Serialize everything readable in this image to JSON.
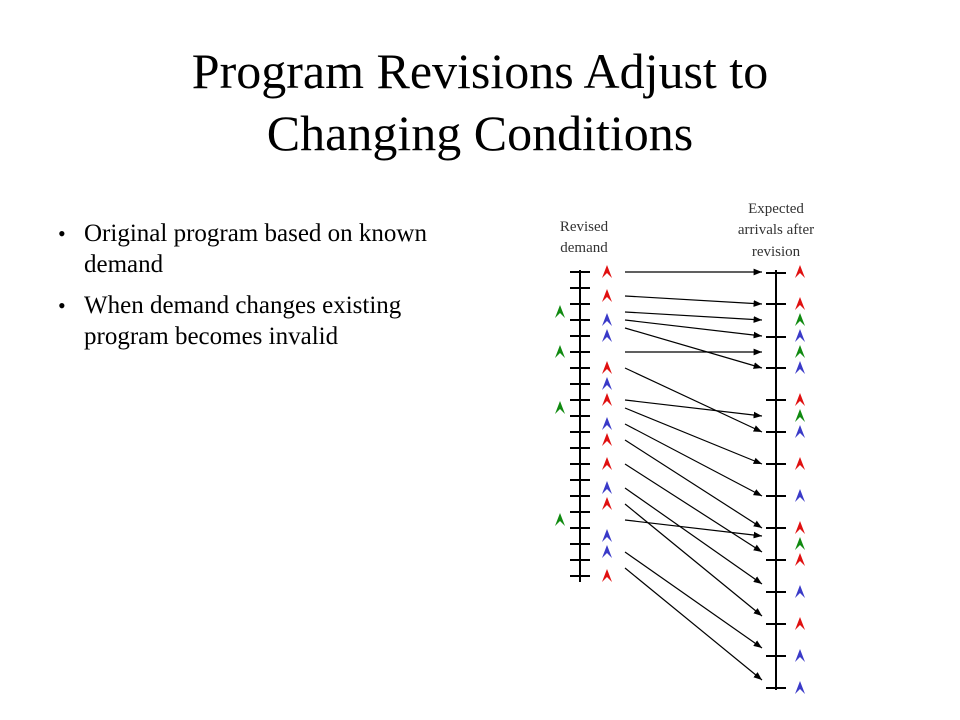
{
  "slide": {
    "title_line1": "Program Revisions Adjust to",
    "title_line2": "Changing Conditions",
    "bullets": [
      "Original program based on known demand",
      "When demand changes existing program becomes invalid"
    ]
  },
  "diagram": {
    "left_label": [
      "Revised",
      "demand"
    ],
    "right_label": [
      "Expected",
      "arrivals after",
      "revision"
    ],
    "colors": {
      "red": "#e01010",
      "blue": "#3a3ac8",
      "green": "#108a10",
      "line": "#000000"
    }
  }
}
